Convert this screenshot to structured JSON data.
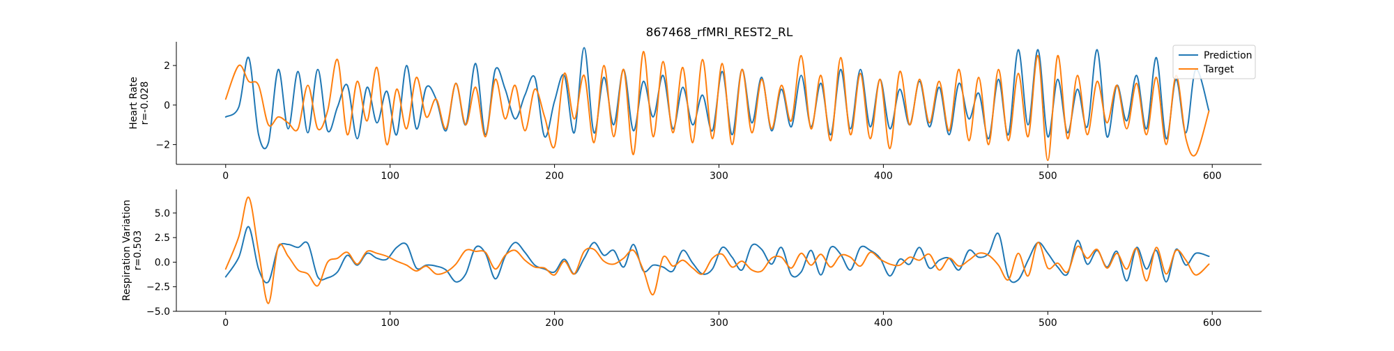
{
  "chart_data": {
    "type": "line",
    "title": "867468_rfMRI_REST2_RL",
    "colors": {
      "prediction": "#1f77b4",
      "target": "#ff7f0e"
    },
    "legend": {
      "placement": "top-right",
      "entries": [
        "Prediction",
        "Target"
      ]
    },
    "panels": [
      {
        "ylabel": [
          "Heart Rate",
          "r=-0.028"
        ],
        "xlim": [
          -30,
          630
        ],
        "ylim": [
          -3.0,
          3.2
        ],
        "xticks": [
          0,
          100,
          200,
          300,
          400,
          500,
          600
        ],
        "yticks": [
          -2,
          0,
          2
        ],
        "grid": false,
        "x": [
          0,
          8,
          14,
          20,
          26,
          32,
          38,
          44,
          50,
          56,
          62,
          68,
          74,
          80,
          86,
          92,
          98,
          104,
          110,
          116,
          122,
          128,
          134,
          140,
          146,
          152,
          158,
          164,
          170,
          176,
          182,
          188,
          194,
          200,
          206,
          212,
          218,
          224,
          230,
          236,
          242,
          248,
          254,
          260,
          266,
          272,
          278,
          284,
          290,
          296,
          302,
          308,
          314,
          320,
          326,
          332,
          338,
          344,
          350,
          356,
          362,
          368,
          374,
          380,
          386,
          392,
          398,
          404,
          410,
          416,
          422,
          428,
          434,
          440,
          446,
          452,
          458,
          464,
          470,
          476,
          482,
          488,
          494,
          500,
          506,
          512,
          518,
          524,
          530,
          536,
          542,
          548,
          554,
          560,
          566,
          572,
          578,
          584,
          590,
          598
        ],
        "series": [
          {
            "name": "Prediction",
            "values": [
              -0.6,
              -0.1,
              2.4,
              -1.5,
              -1.9,
              1.8,
              -1.2,
              1.7,
              -1.4,
              1.8,
              -1.3,
              -0.1,
              1.0,
              -1.7,
              0.9,
              -0.9,
              0.7,
              -1.5,
              2.0,
              -1.2,
              0.9,
              0.3,
              -1.3,
              1.1,
              -1.0,
              2.1,
              -1.5,
              1.8,
              0.8,
              -0.7,
              0.5,
              1.4,
              -1.6,
              0.2,
              1.5,
              -1.4,
              2.9,
              -1.4,
              1.4,
              -1.0,
              1.8,
              -1.3,
              1.2,
              -0.6,
              1.5,
              -1.2,
              0.9,
              -1.0,
              0.5,
              -1.3,
              1.7,
              -1.5,
              1.8,
              -0.9,
              1.4,
              -1.3,
              0.8,
              -1.1,
              1.5,
              -1.1,
              1.1,
              -1.5,
              1.8,
              -1.2,
              1.8,
              -1.1,
              1.3,
              -1.2,
              0.8,
              -1.0,
              1.2,
              -1.1,
              0.9,
              -1.5,
              1.1,
              -0.7,
              0.6,
              -1.7,
              1.3,
              -1.5,
              2.8,
              -1.0,
              2.8,
              -1.6,
              1.3,
              -1.4,
              0.8,
              -1.1,
              2.8,
              -1.6,
              1.0,
              -0.8,
              1.5,
              -1.2,
              2.4,
              -1.7,
              1.3,
              -1.4,
              1.8,
              -0.3
            ]
          },
          {
            "name": "Target",
            "values": [
              0.3,
              2.0,
              1.2,
              1.0,
              -1.0,
              -0.6,
              -0.9,
              -1.2,
              1.0,
              -1.2,
              -0.3,
              2.3,
              -1.5,
              1.2,
              -0.8,
              1.9,
              -2.0,
              0.8,
              -1.2,
              1.4,
              -0.6,
              0.3,
              -1.2,
              1.1,
              -1.0,
              0.9,
              -1.6,
              1.3,
              -0.7,
              1.0,
              -1.3,
              0.8,
              -0.6,
              -2.1,
              1.6,
              -0.7,
              1.5,
              -1.9,
              2.0,
              -1.6,
              1.8,
              -2.5,
              2.7,
              -1.6,
              2.2,
              -1.4,
              1.9,
              -1.9,
              2.3,
              -1.7,
              2.1,
              -2.0,
              1.8,
              -1.4,
              1.3,
              -1.2,
              1.0,
              -0.8,
              2.5,
              -1.2,
              1.5,
              -1.8,
              2.4,
              -1.5,
              1.6,
              -1.7,
              1.3,
              -2.2,
              1.7,
              -1.0,
              1.3,
              -0.9,
              1.2,
              -1.3,
              1.8,
              -1.8,
              1.4,
              -2.0,
              1.8,
              -1.8,
              1.6,
              -1.6,
              2.5,
              -2.8,
              2.5,
              -1.7,
              1.5,
              -1.5,
              1.2,
              -0.9,
              1.0,
              -1.2,
              1.1,
              -1.5,
              1.4,
              -2.0,
              1.5,
              -1.7,
              -2.5,
              -0.3
            ]
          }
        ]
      },
      {
        "ylabel": [
          "Respiration Variation",
          "r=0.503"
        ],
        "xlim": [
          -30,
          630
        ],
        "ylim": [
          -5.0,
          7.4
        ],
        "xticks": [
          0,
          100,
          200,
          300,
          400,
          500,
          600
        ],
        "yticks": [
          -5.0,
          -2.5,
          0.0,
          2.5,
          5.0
        ],
        "ytick_labels": [
          "−5.0",
          "−2.5",
          "0.0",
          "2.5",
          "5.0"
        ],
        "grid": false,
        "x": [
          0,
          8,
          14,
          20,
          26,
          32,
          38,
          44,
          50,
          56,
          62,
          68,
          74,
          80,
          86,
          92,
          98,
          104,
          110,
          116,
          122,
          128,
          134,
          140,
          146,
          152,
          158,
          164,
          170,
          176,
          182,
          188,
          194,
          200,
          206,
          212,
          218,
          224,
          230,
          236,
          242,
          248,
          254,
          260,
          266,
          272,
          278,
          284,
          290,
          296,
          302,
          308,
          314,
          320,
          326,
          332,
          338,
          344,
          350,
          356,
          362,
          368,
          374,
          380,
          386,
          392,
          398,
          404,
          410,
          416,
          422,
          428,
          434,
          440,
          446,
          452,
          458,
          464,
          470,
          476,
          482,
          488,
          494,
          500,
          506,
          512,
          518,
          524,
          530,
          536,
          542,
          548,
          554,
          560,
          566,
          572,
          578,
          584,
          590,
          598
        ],
        "series": [
          {
            "name": "Prediction",
            "values": [
              -1.5,
              0.5,
              3.6,
              -0.7,
              -2.0,
              1.5,
              1.8,
              1.5,
              1.9,
              -1.5,
              -1.6,
              -1.0,
              0.7,
              -0.3,
              0.9,
              0.4,
              0.3,
              1.5,
              1.8,
              -0.6,
              -0.3,
              -0.4,
              -0.8,
              -2.0,
              -1.2,
              1.5,
              0.9,
              -1.7,
              0.6,
              2.0,
              1.0,
              -0.3,
              -0.7,
              -1.0,
              0.3,
              -1.2,
              0.4,
              2.0,
              0.7,
              1.2,
              -0.5,
              1.8,
              -0.9,
              -0.3,
              -0.5,
              -0.9,
              1.2,
              -0.1,
              -1.2,
              -0.7,
              1.5,
              0.5,
              -0.8,
              1.7,
              1.3,
              -0.2,
              1.5,
              -1.3,
              -1.0,
              1.2,
              -1.3,
              1.5,
              0.8,
              -0.8,
              1.5,
              1.2,
              0.4,
              -1.4,
              0.3,
              -0.2,
              1.5,
              -0.6,
              0.2,
              0.4,
              -0.8,
              1.2,
              0.5,
              0.9,
              2.9,
              -1.5,
              -1.8,
              0.2,
              2.0,
              0.9,
              -0.5,
              -1.2,
              2.2,
              -0.2,
              1.2,
              -0.5,
              1.1,
              -1.9,
              1.5,
              -0.7,
              1.2,
              -2.0,
              1.3,
              -0.3,
              0.9,
              0.6
            ]
          },
          {
            "name": "Target",
            "values": [
              -0.7,
              2.6,
              6.6,
              1.1,
              -4.2,
              1.6,
              0.6,
              -0.8,
              -1.2,
              -2.4,
              0.0,
              0.4,
              1.0,
              -0.2,
              1.1,
              0.9,
              0.6,
              0.1,
              -0.3,
              -0.9,
              -0.4,
              -1.2,
              -1.0,
              -0.2,
              1.2,
              1.1,
              1.0,
              -0.7,
              0.7,
              1.2,
              0.2,
              -0.5,
              -0.6,
              -1.3,
              0.1,
              -1.2,
              1.1,
              1.3,
              0.1,
              -0.2,
              0.4,
              1.2,
              -0.8,
              -3.3,
              0.5,
              -0.4,
              0.2,
              -0.6,
              -1.2,
              0.4,
              0.8,
              -0.5,
              0.1,
              -0.8,
              -0.9,
              0.4,
              0.5,
              -0.6,
              0.9,
              -0.3,
              0.8,
              -0.5,
              0.7,
              0.5,
              -0.4,
              1.0,
              0.3,
              -0.2,
              -0.3,
              0.5,
              0.2,
              0.8,
              -0.8,
              0.4,
              -0.4,
              0.2,
              0.9,
              0.7,
              -0.3,
              -1.8,
              0.9,
              -1.4,
              2.0,
              -0.6,
              -0.1,
              -1.0,
              1.6,
              0.4,
              1.3,
              -0.6,
              0.9,
              -0.7,
              1.4,
              -1.9,
              1.5,
              -1.2,
              1.2,
              0.2,
              -1.3,
              -0.2
            ]
          }
        ]
      }
    ]
  }
}
